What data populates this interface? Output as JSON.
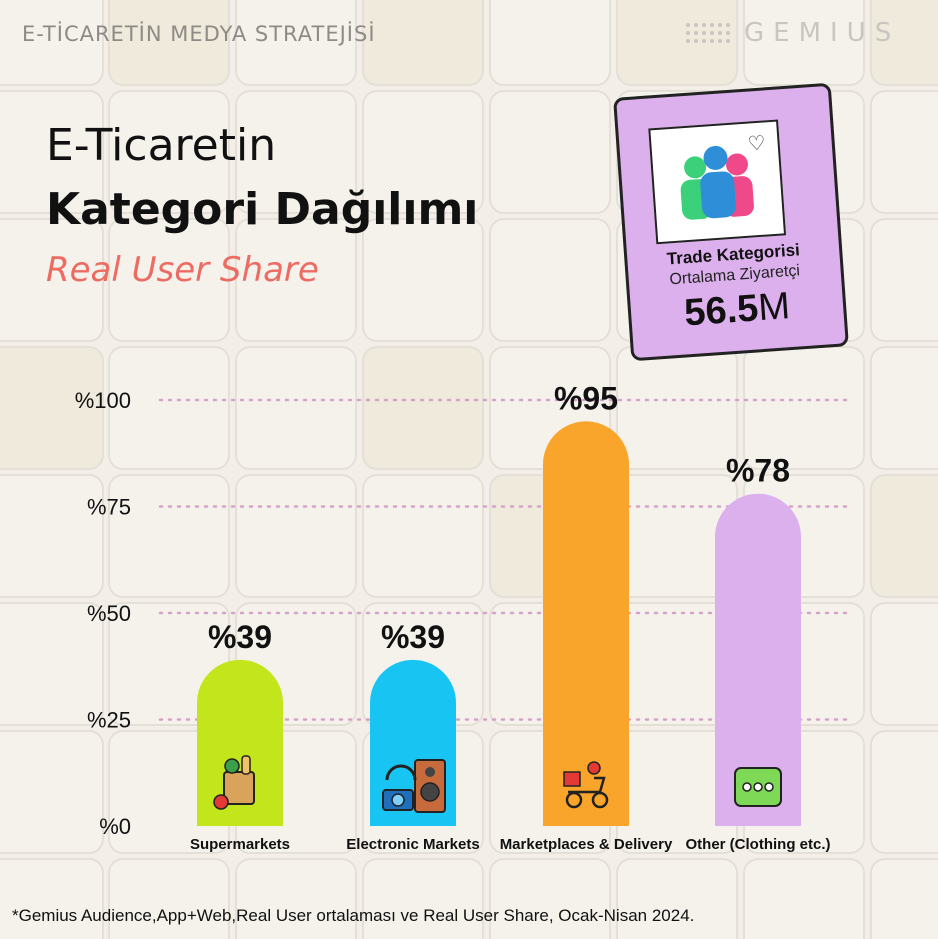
{
  "header": {
    "top_title": "E-TİCARETİN MEDYA STRATEJİSİ",
    "brand": "GEMIUS"
  },
  "titles": {
    "line1": "E-Ticaretin",
    "line2": "Kategori Dağılımı",
    "line3": "Real User Share"
  },
  "card": {
    "heading": "Trade Kategorisi",
    "subheading": "Ortalama Ziyaretçi",
    "value_number": "56.5",
    "value_unit": "M",
    "icon": "users-group-icon",
    "heart_icon": "heart-icon"
  },
  "chart_data": {
    "type": "bar",
    "categories": [
      "Supermarkets",
      "Electronic Markets",
      "Marketplaces & Delivery",
      "Other (Clothing etc.)"
    ],
    "values": [
      39,
      39,
      95,
      78
    ],
    "value_labels": [
      "%39",
      "%39",
      "%95",
      "%78"
    ],
    "colors": [
      "#c3e51b",
      "#18c4f2",
      "#f9a52b",
      "#dcb0ec"
    ],
    "icons": [
      "grocery-bag-icon",
      "electronics-icon",
      "delivery-scooter-icon",
      "more-dots-icon"
    ],
    "yticks": [
      "%0",
      "%25",
      "%50",
      "%75",
      "%100"
    ],
    "ytick_values": [
      0,
      25,
      50,
      75,
      100
    ],
    "ylim": [
      0,
      100
    ],
    "grid": "dotted horizontal"
  },
  "footnote": "*Gemius Audience,App+Web,Real User ortalaması ve Real User Share, Ocak-Nisan 2024."
}
